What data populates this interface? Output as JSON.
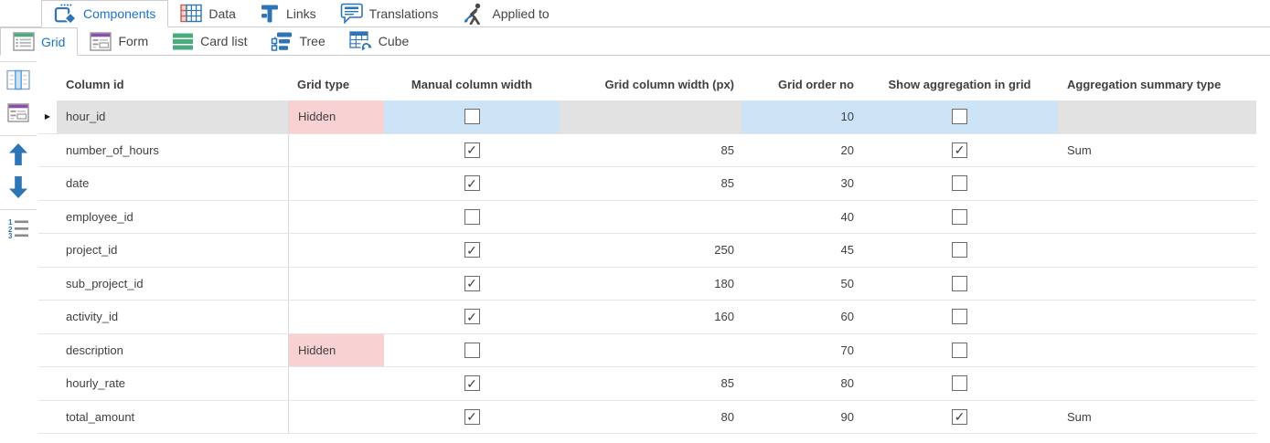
{
  "primary_tabs": [
    {
      "label": "Components",
      "icon": "components-icon",
      "selected": true
    },
    {
      "label": "Data",
      "icon": "data-icon",
      "selected": false
    },
    {
      "label": "Links",
      "icon": "links-icon",
      "selected": false
    },
    {
      "label": "Translations",
      "icon": "translations-icon",
      "selected": false
    },
    {
      "label": "Applied to",
      "icon": "applied-to-icon",
      "selected": false
    }
  ],
  "secondary_tabs": [
    {
      "label": "Grid",
      "icon": "grid-icon",
      "selected": true
    },
    {
      "label": "Form",
      "icon": "form-icon",
      "selected": false
    },
    {
      "label": "Card list",
      "icon": "cardlist-icon",
      "selected": false
    },
    {
      "label": "Tree",
      "icon": "tree-icon",
      "selected": false
    },
    {
      "label": "Cube",
      "icon": "cube-icon",
      "selected": false
    }
  ],
  "sidebar": {
    "items": [
      {
        "name": "column-chooser",
        "icon": "table-columns-icon"
      },
      {
        "name": "form-layout",
        "icon": "form-layout-icon"
      },
      {
        "name": "move-up",
        "icon": "up-arrow-icon"
      },
      {
        "name": "move-down",
        "icon": "down-arrow-icon"
      },
      {
        "name": "renumber-order",
        "icon": "numbered-list-icon"
      }
    ]
  },
  "grid": {
    "columns": [
      {
        "label": "Column id",
        "align": "left"
      },
      {
        "label": "Grid type",
        "align": "left"
      },
      {
        "label": "Manual column width",
        "align": "center"
      },
      {
        "label": "Grid column width (px)",
        "align": "right"
      },
      {
        "label": "Grid order no",
        "align": "right"
      },
      {
        "label": "Show aggregation in grid",
        "align": "center"
      },
      {
        "label": "Aggregation summary type",
        "align": "left"
      }
    ],
    "rows": [
      {
        "column_id": "hour_id",
        "grid_type": "Hidden",
        "manual_column_width": false,
        "grid_column_width_px": "",
        "grid_order_no": "10",
        "show_aggregation_in_grid": false,
        "aggregation_summary_type": "",
        "selected": true
      },
      {
        "column_id": "number_of_hours",
        "grid_type": "",
        "manual_column_width": true,
        "grid_column_width_px": "85",
        "grid_order_no": "20",
        "show_aggregation_in_grid": true,
        "aggregation_summary_type": "Sum",
        "selected": false
      },
      {
        "column_id": "date",
        "grid_type": "",
        "manual_column_width": true,
        "grid_column_width_px": "85",
        "grid_order_no": "30",
        "show_aggregation_in_grid": false,
        "aggregation_summary_type": "",
        "selected": false
      },
      {
        "column_id": "employee_id",
        "grid_type": "",
        "manual_column_width": false,
        "grid_column_width_px": "",
        "grid_order_no": "40",
        "show_aggregation_in_grid": false,
        "aggregation_summary_type": "",
        "selected": false
      },
      {
        "column_id": "project_id",
        "grid_type": "",
        "manual_column_width": true,
        "grid_column_width_px": "250",
        "grid_order_no": "45",
        "show_aggregation_in_grid": false,
        "aggregation_summary_type": "",
        "selected": false
      },
      {
        "column_id": "sub_project_id",
        "grid_type": "",
        "manual_column_width": true,
        "grid_column_width_px": "180",
        "grid_order_no": "50",
        "show_aggregation_in_grid": false,
        "aggregation_summary_type": "",
        "selected": false
      },
      {
        "column_id": "activity_id",
        "grid_type": "",
        "manual_column_width": true,
        "grid_column_width_px": "160",
        "grid_order_no": "60",
        "show_aggregation_in_grid": false,
        "aggregation_summary_type": "",
        "selected": false
      },
      {
        "column_id": "description",
        "grid_type": "Hidden",
        "manual_column_width": false,
        "grid_column_width_px": "",
        "grid_order_no": "70",
        "show_aggregation_in_grid": false,
        "aggregation_summary_type": "",
        "selected": false
      },
      {
        "column_id": "hourly_rate",
        "grid_type": "",
        "manual_column_width": true,
        "grid_column_width_px": "85",
        "grid_order_no": "80",
        "show_aggregation_in_grid": false,
        "aggregation_summary_type": "",
        "selected": false
      },
      {
        "column_id": "total_amount",
        "grid_type": "",
        "manual_column_width": true,
        "grid_column_width_px": "80",
        "grid_order_no": "90",
        "show_aggregation_in_grid": true,
        "aggregation_summary_type": "Sum",
        "selected": false
      }
    ]
  },
  "colors": {
    "accent_blue": "#1a73c8",
    "icon_blue": "#2e75b6",
    "icon_green": "#4aab7d",
    "icon_purple": "#8a4fa8",
    "icon_red": "#c75f55",
    "hidden_cell_pink": "#f8d2d2",
    "selected_editable_cell_blue": "#cde4f6",
    "selected_readonly_cell_gray": "#e2e2e2"
  }
}
